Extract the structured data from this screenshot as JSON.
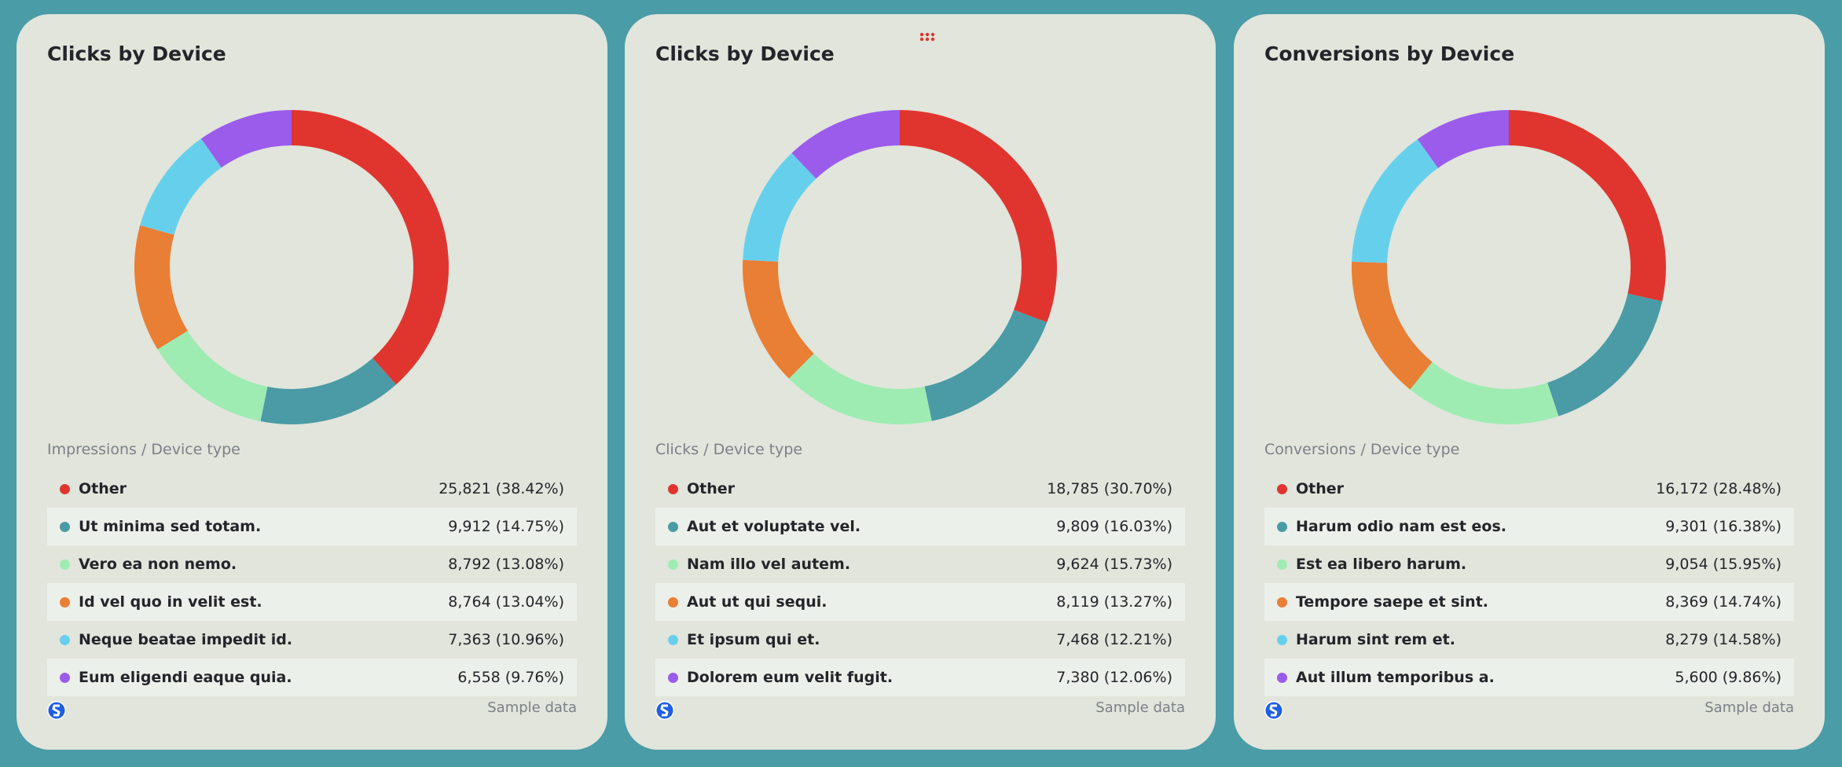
{
  "colors": {
    "background": "#4a9ca7",
    "card": "#e1e5db",
    "series": [
      "#e0352f",
      "#4a9ba6",
      "#9fecb3",
      "#e97e35",
      "#66d0ec",
      "#9b5cec"
    ]
  },
  "footer_label": "Sample data",
  "chart_data": [
    {
      "type": "pie",
      "donut": true,
      "title": "Clicks by Device",
      "subtitle": "Impressions / Device type",
      "categories": [
        "Other",
        "Ut minima sed totam.",
        "Vero ea non nemo.",
        "Id vel quo in velit est.",
        "Neque beatae impedit id.",
        "Eum eligendi eaque quia."
      ],
      "values": [
        25821,
        9912,
        8792,
        8764,
        7363,
        6558
      ],
      "labels": [
        "25,821 (38.42%)",
        "9,912 (14.75%)",
        "8,792 (13.08%)",
        "8,764 (13.04%)",
        "7,363 (10.96%)",
        "6,558 (9.76%)"
      ]
    },
    {
      "type": "pie",
      "donut": true,
      "title": "Clicks by Device",
      "subtitle": "Clicks / Device type",
      "categories": [
        "Other",
        "Aut et voluptate vel.",
        "Nam illo vel autem.",
        "Aut ut qui sequi.",
        "Et ipsum qui et.",
        "Dolorem eum velit fugit."
      ],
      "values": [
        18785,
        9809,
        9624,
        8119,
        7468,
        7380
      ],
      "labels": [
        "18,785 (30.70%)",
        "9,809 (16.03%)",
        "9,624 (15.73%)",
        "8,119 (13.27%)",
        "7,468 (12.21%)",
        "7,380 (12.06%)"
      ]
    },
    {
      "type": "pie",
      "donut": true,
      "title": "Conversions by Device",
      "subtitle": "Conversions / Device type",
      "categories": [
        "Other",
        "Harum odio nam est eos.",
        "Est ea libero harum.",
        "Tempore saepe et sint.",
        "Harum sint rem et.",
        "Aut illum temporibus a."
      ],
      "values": [
        16172,
        9301,
        9054,
        8369,
        8279,
        5600
      ],
      "labels": [
        "16,172 (28.48%)",
        "9,301 (16.38%)",
        "9,054 (15.95%)",
        "8,369 (14.74%)",
        "8,279 (14.58%)",
        "5,600 (9.86%)"
      ]
    }
  ]
}
